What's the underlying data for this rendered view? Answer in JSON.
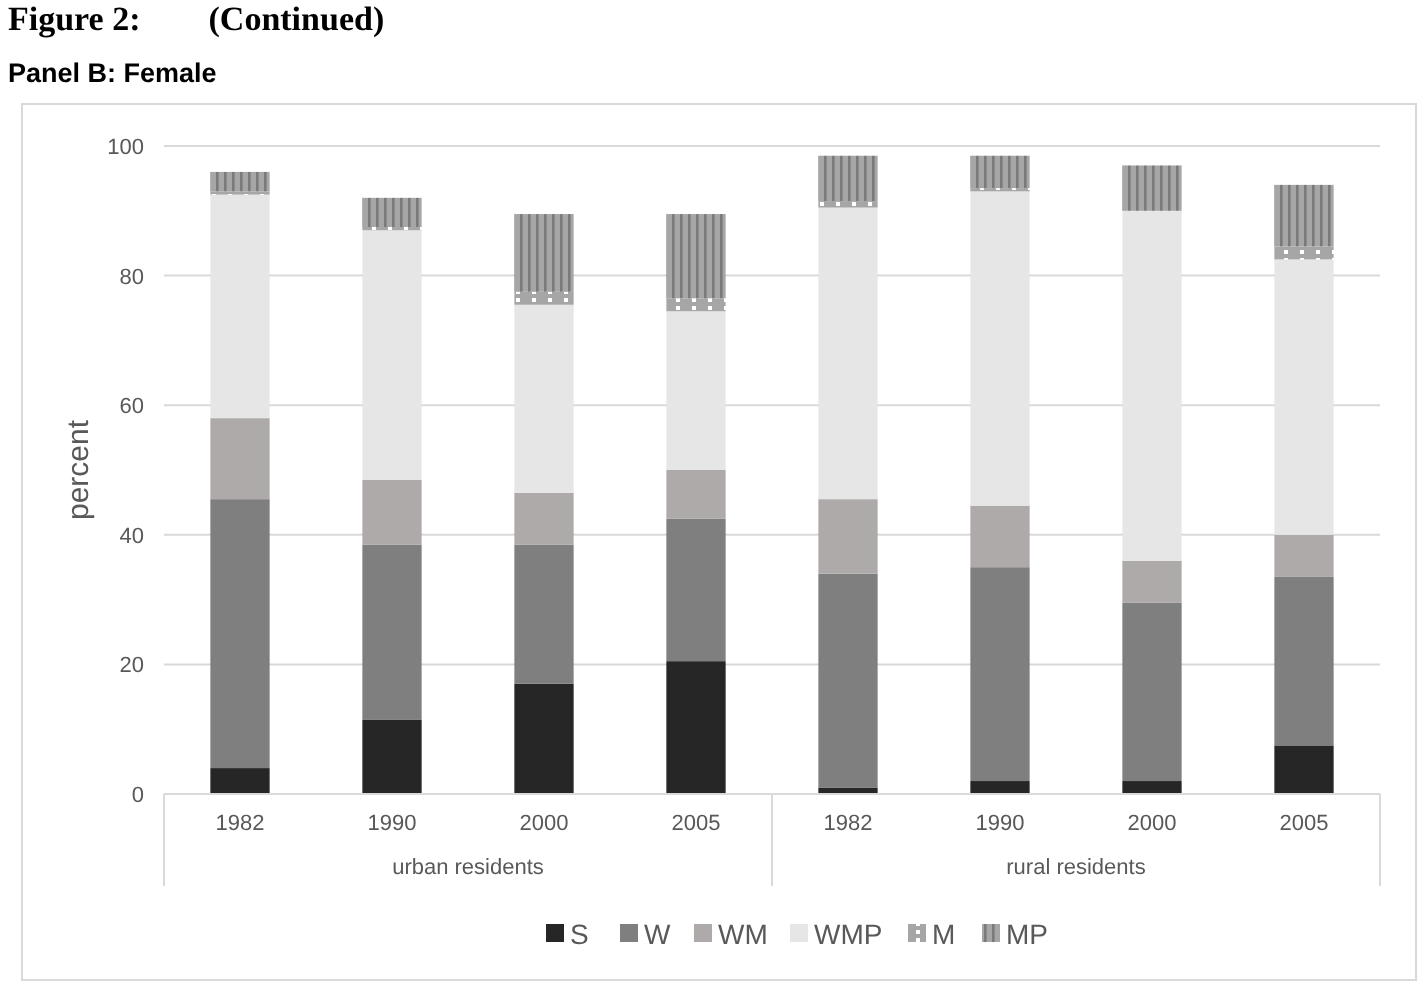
{
  "chart_data": {
    "type": "bar",
    "title": "Figure 2:        (Continued)",
    "subtitle": "Panel B: Female",
    "ylabel": "percent",
    "categories": [
      "1982",
      "1990",
      "2000",
      "2005",
      "1982",
      "1990",
      "2000",
      "2005"
    ],
    "annotations": [
      "urban residents",
      "rural residents"
    ],
    "stacked": true,
    "ylim": [
      0,
      100
    ],
    "yticks": [
      0,
      20,
      40,
      60,
      80,
      100
    ],
    "grid": "y",
    "legend": "bottom",
    "series": [
      {
        "name": "S",
        "color": "#262626",
        "values": [
          4,
          11.5,
          17,
          20.5,
          1,
          2,
          2,
          7.5
        ]
      },
      {
        "name": "W",
        "color": "#7f7f7f",
        "values": [
          41.5,
          27,
          21.5,
          22,
          33,
          33,
          27.5,
          26
        ]
      },
      {
        "name": "WM",
        "color": "#aeaaaa",
        "values": [
          12.5,
          10,
          8,
          7.5,
          11.5,
          9.5,
          6.5,
          6.5
        ]
      },
      {
        "name": "WMP",
        "color": "#e7e6e6",
        "values": [
          34.5,
          38.5,
          29,
          24.5,
          45,
          48.5,
          54,
          42.5
        ]
      },
      {
        "name": "M",
        "color": "#a6a6a6",
        "values": [
          0.5,
          0.5,
          2,
          2,
          1,
          0.5,
          0,
          2
        ]
      },
      {
        "name": "MP",
        "color": "#a6a6a6",
        "values": [
          3,
          4.5,
          12,
          13,
          7,
          5,
          7,
          9.5
        ]
      }
    ]
  }
}
